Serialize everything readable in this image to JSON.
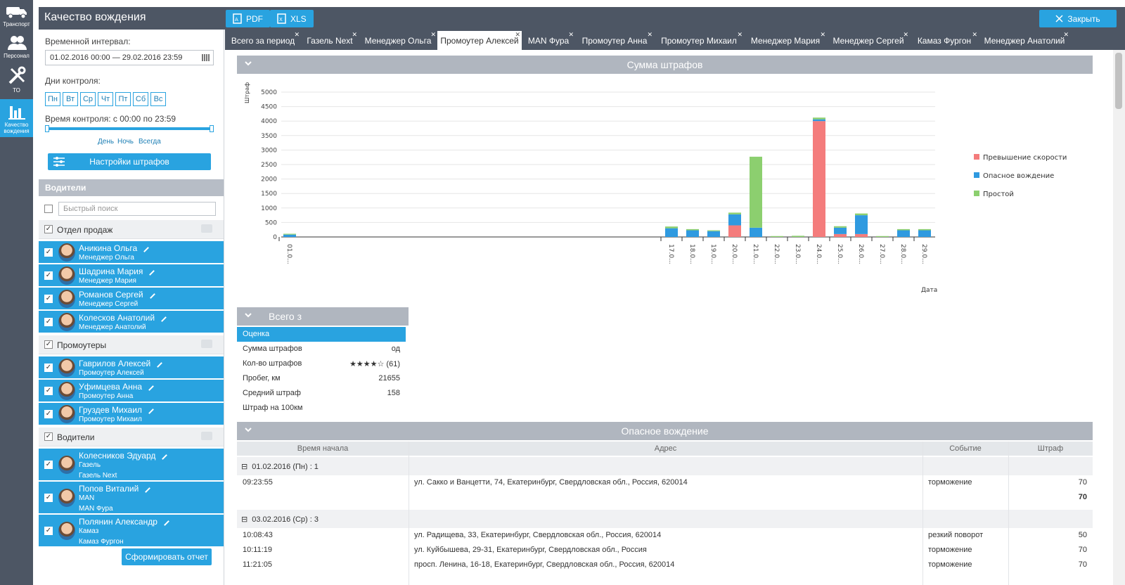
{
  "nav": [
    {
      "label": "Транспорт",
      "icon": "truck-icon"
    },
    {
      "label": "Персонал",
      "icon": "people-icon"
    },
    {
      "label": "ТО",
      "icon": "tools-icon"
    },
    {
      "label": "Качество вождения",
      "icon": "bar-chart-icon"
    }
  ],
  "header": {
    "title": "Качество вождения",
    "pdf": "PDF",
    "xls": "XLS",
    "close": "Закрыть"
  },
  "filters": {
    "interval_label": "Временной интервал:",
    "interval_value": "01.02.2016 00:00 — 29.02.2016 23:59",
    "days_label": "Дни контроля:",
    "days": [
      "Пн",
      "Вт",
      "Ср",
      "Чт",
      "Пт",
      "Сб",
      "Вс"
    ],
    "time_label": "Время контроля: с 00:00 по 23:59",
    "presets": [
      "День",
      "Ночь",
      "Всегда"
    ],
    "settings_button": "Настройки штрафов"
  },
  "drivers_panel": {
    "title": "Водители",
    "search_placeholder": "Быстрый поиск",
    "groups": [
      {
        "name": "Отдел продаж",
        "drivers": [
          {
            "name": "Аникина Ольга",
            "sub": [
              "Менеджер Ольга"
            ]
          },
          {
            "name": "Шадрина Мария",
            "sub": [
              "Менеджер Мария"
            ]
          },
          {
            "name": "Романов Сергей",
            "sub": [
              "Менеджер Сергей"
            ]
          },
          {
            "name": "Колесков Анатолий",
            "sub": [
              "Менеджер Анатолий"
            ]
          }
        ]
      },
      {
        "name": "Промоутеры",
        "drivers": [
          {
            "name": "Гаврилов Алексей",
            "sub": [
              "Промоутер Алексей"
            ]
          },
          {
            "name": "Уфимцева Анна",
            "sub": [
              "Промоутер Анна"
            ]
          },
          {
            "name": "Груздев Михаил",
            "sub": [
              "Промоутер Михаил"
            ]
          }
        ]
      },
      {
        "name": "Водители",
        "drivers": [
          {
            "name": "Колесников Эдуард",
            "sub": [
              "Газель",
              "Газель Next"
            ]
          },
          {
            "name": "Попов Виталий",
            "sub": [
              "MAN",
              "MAN Фура"
            ]
          },
          {
            "name": "Полянин Александр",
            "sub": [
              "Камаз",
              "Камаз Фургон"
            ]
          }
        ]
      }
    ],
    "generate_button": "Сформировать отчет"
  },
  "tabs": [
    {
      "label": "Всего за период"
    },
    {
      "label": "Газель Next"
    },
    {
      "label": "Менеджер Ольга"
    },
    {
      "label": "Промоутер Алексей",
      "active": true
    },
    {
      "label": "MAN Фура"
    },
    {
      "label": "Промоутер Анна"
    },
    {
      "label": "Промоутер Михаил"
    },
    {
      "label": "Менеджер Мария"
    },
    {
      "label": "Менеджер Сергей"
    },
    {
      "label": "Камаз Фургон"
    },
    {
      "label": "Менеджер Анатолий"
    }
  ],
  "chart_section": {
    "title": "Сумма штрафов"
  },
  "chart_data": {
    "type": "bar",
    "stacked": true,
    "ylabel": "Штраф",
    "xlabel": "Дата",
    "ylim": [
      0,
      5000
    ],
    "yticks": [
      0,
      500,
      1000,
      1500,
      2000,
      2500,
      3000,
      3500,
      4000,
      4500,
      5000
    ],
    "legend_position": "right",
    "categories": [
      "01.0...",
      "17.0...",
      "18.0...",
      "19.0...",
      "20.0...",
      "21.0...",
      "22.0...",
      "23.0...",
      "24.0...",
      "25.0...",
      "26.0...",
      "27.0...",
      "28.0...",
      "29.0..."
    ],
    "series": [
      {
        "name": "Превышение скорости",
        "color": "#f47c7c",
        "values": [
          0,
          0,
          0,
          0,
          400,
          0,
          0,
          0,
          4000,
          100,
          100,
          0,
          0,
          0
        ]
      },
      {
        "name": "Опасное вождение",
        "color": "#2f9ae0",
        "values": [
          80,
          300,
          230,
          200,
          380,
          320,
          0,
          0,
          60,
          220,
          650,
          0,
          230,
          230
        ]
      },
      {
        "name": "Простой",
        "color": "#8ccf6f",
        "values": [
          30,
          60,
          40,
          30,
          60,
          2450,
          30,
          40,
          60,
          50,
          60,
          30,
          40,
          40
        ]
      }
    ]
  },
  "summary": {
    "title": "Всего з",
    "rows": [
      {
        "label": "Оценка",
        "value": ""
      },
      {
        "label": "Сумма штрафов",
        "value": "од"
      },
      {
        "label": "Кол-во штрафов",
        "value": "★★★★☆ (61)"
      },
      {
        "label": "Пробег, км",
        "value": "21655"
      },
      {
        "label": "Средний штраф",
        "value": "158"
      },
      {
        "label": "Штраф на 100км",
        "value": ""
      }
    ]
  },
  "danger_section": {
    "title": "Опасное вождение",
    "columns": [
      "Время начала",
      "Адрес",
      "Событие",
      "Штраф"
    ],
    "groups": [
      {
        "header": "01.02.2016 (Пн) : 1",
        "total": "70",
        "rows": [
          {
            "time": "09:23:55",
            "address": "ул. Сакко и Ванцетти, 74, Екатеринбург, Свердловская обл., Россия, 620014",
            "event": "торможение",
            "fine": "70"
          }
        ]
      },
      {
        "header": "03.02.2016 (Ср) : 3",
        "rows": [
          {
            "time": "10:08:43",
            "address": "ул. Радищева, 33, Екатеринбург, Свердловская обл., Россия, 620014",
            "event": "резкий поворот",
            "fine": "50"
          },
          {
            "time": "10:11:19",
            "address": "ул. Куйбышева, 29-31, Екатеринбург, Свердловская обл., Россия",
            "event": "торможение",
            "fine": "70"
          },
          {
            "time": "11:21:05",
            "address": "просп. Ленина, 16-18, Екатеринбург, Свердловская обл., Россия, 620014",
            "event": "торможение",
            "fine": "70"
          }
        ]
      }
    ]
  }
}
